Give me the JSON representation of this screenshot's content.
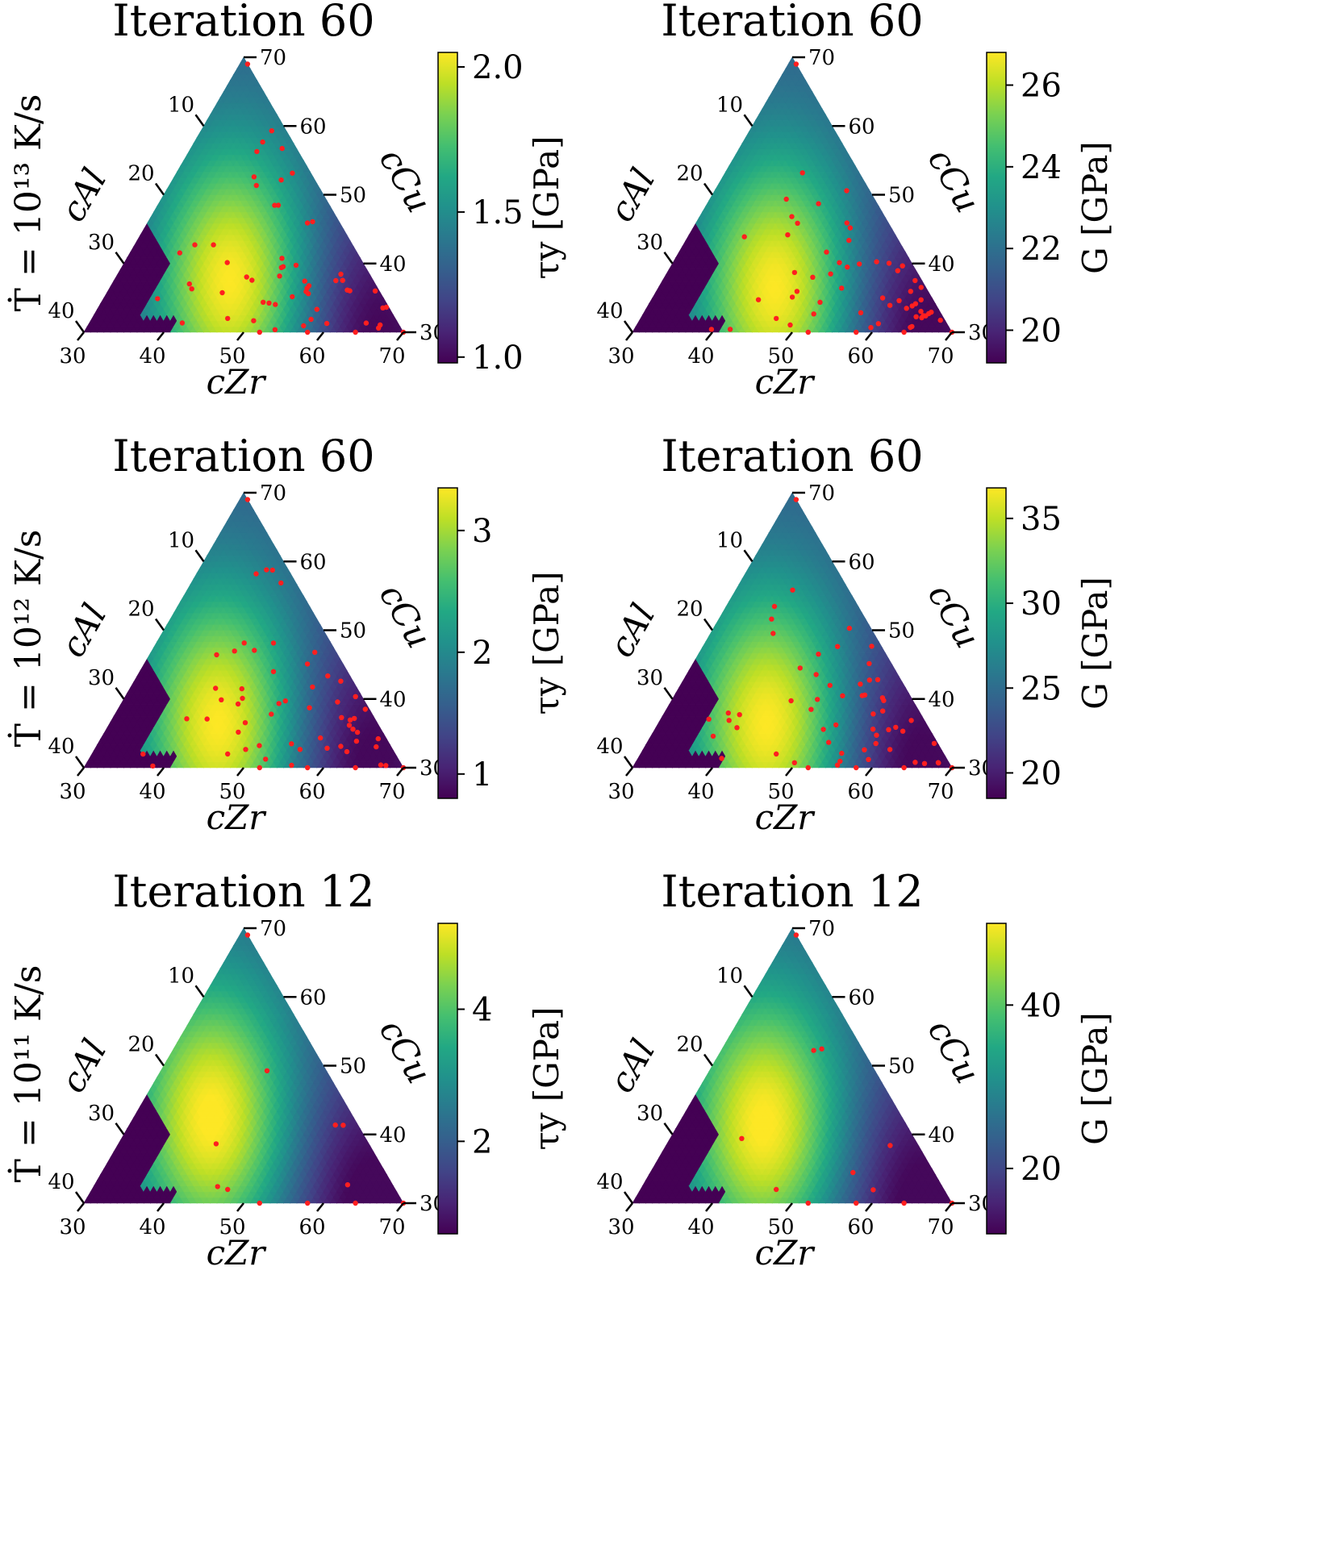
{
  "figure": {
    "row_labels": [
      "Ṫ = 10¹³ K/s",
      "Ṫ = 10¹² K/s",
      "Ṫ = 10¹¹ K/s"
    ],
    "colormap": [
      "#440154",
      "#482475",
      "#414487",
      "#355f8d",
      "#2a788e",
      "#21918c",
      "#22a884",
      "#44bf70",
      "#7ad151",
      "#bddf26",
      "#fde725"
    ],
    "marker_color": "#ff1f1f",
    "masked_color": "#440154"
  },
  "chart_data": [
    {
      "type": "heatmap",
      "subtype": "ternary",
      "title": "Iteration 60",
      "axes": {
        "c_zr_label": "cZr",
        "c_al_label": "cAl",
        "c_cu_label": "cCu",
        "c_zr_ticks": [
          "30",
          "40",
          "50",
          "60",
          "70"
        ],
        "c_al_ticks": [
          "10",
          "20",
          "30",
          "40"
        ],
        "c_cu_ticks": [
          "70",
          "60",
          "50",
          "40",
          "30"
        ]
      },
      "colorbar": {
        "label": "τy [GPa]",
        "range": [
          0.98,
          2.05
        ],
        "ticks": [
          {
            "value": 1.0,
            "label": "1.0"
          },
          {
            "value": 1.5,
            "label": "1.5"
          },
          {
            "value": 2.0,
            "label": "2.0"
          }
        ]
      },
      "field": {
        "peak": {
          "zr": 45,
          "al": 18,
          "cu": 37
        },
        "low": {
          "zr": 64,
          "al": 5,
          "cu": 31
        }
      },
      "sample_count": 60
    },
    {
      "type": "heatmap",
      "subtype": "ternary",
      "title": "Iteration 60",
      "axes": {
        "c_zr_label": "cZr",
        "c_al_label": "cAl",
        "c_cu_label": "cCu",
        "c_zr_ticks": [
          "30",
          "40",
          "50",
          "60",
          "70"
        ],
        "c_al_ticks": [
          "10",
          "20",
          "30",
          "40"
        ],
        "c_cu_ticks": [
          "70",
          "60",
          "50",
          "40",
          "30"
        ]
      },
      "colorbar": {
        "label": "G [GPa]",
        "range": [
          19.2,
          26.8
        ],
        "ticks": [
          {
            "value": 20,
            "label": "20"
          },
          {
            "value": 22,
            "label": "22"
          },
          {
            "value": 24,
            "label": "24"
          },
          {
            "value": 26,
            "label": "26"
          }
        ]
      },
      "field": {
        "peak": {
          "zr": 45,
          "al": 19,
          "cu": 36
        },
        "low": {
          "zr": 64,
          "al": 5,
          "cu": 31
        }
      },
      "sample_count": 60
    },
    {
      "type": "heatmap",
      "subtype": "ternary",
      "title": "Iteration 60",
      "axes": {
        "c_zr_label": "cZr",
        "c_al_label": "cAl",
        "c_cu_label": "cCu",
        "c_zr_ticks": [
          "30",
          "40",
          "50",
          "60",
          "70"
        ],
        "c_al_ticks": [
          "10",
          "20",
          "30",
          "40"
        ],
        "c_cu_ticks": [
          "70",
          "60",
          "50",
          "40",
          "30"
        ]
      },
      "colorbar": {
        "label": "τy [GPa]",
        "range": [
          0.8,
          3.35
        ],
        "ticks": [
          {
            "value": 1,
            "label": "1"
          },
          {
            "value": 2,
            "label": "2"
          },
          {
            "value": 3,
            "label": "3"
          }
        ]
      },
      "field": {
        "peak": {
          "zr": 44,
          "al": 20,
          "cu": 36
        },
        "low": {
          "zr": 63,
          "al": 5,
          "cu": 32
        }
      },
      "sample_count": 60
    },
    {
      "type": "heatmap",
      "subtype": "ternary",
      "title": "Iteration 60",
      "axes": {
        "c_zr_label": "cZr",
        "c_al_label": "cAl",
        "c_cu_label": "cCu",
        "c_zr_ticks": [
          "30",
          "40",
          "50",
          "60",
          "70"
        ],
        "c_al_ticks": [
          "10",
          "20",
          "30",
          "40"
        ],
        "c_cu_ticks": [
          "70",
          "60",
          "50",
          "40",
          "30"
        ]
      },
      "colorbar": {
        "label": "G [GPa]",
        "range": [
          18.5,
          36.8
        ],
        "ticks": [
          {
            "value": 20,
            "label": "20"
          },
          {
            "value": 25,
            "label": "25"
          },
          {
            "value": 30,
            "label": "30"
          },
          {
            "value": 35,
            "label": "35"
          }
        ]
      },
      "field": {
        "peak": {
          "zr": 44,
          "al": 20,
          "cu": 36
        },
        "low": {
          "zr": 63,
          "al": 5,
          "cu": 32
        }
      },
      "sample_count": 60
    },
    {
      "type": "heatmap",
      "subtype": "ternary",
      "title": "Iteration 12",
      "axes": {
        "c_zr_label": "cZr",
        "c_al_label": "cAl",
        "c_cu_label": "cCu",
        "c_zr_ticks": [
          "30",
          "40",
          "50",
          "60",
          "70"
        ],
        "c_al_ticks": [
          "10",
          "20",
          "30",
          "40"
        ],
        "c_cu_ticks": [
          "70",
          "60",
          "50",
          "40",
          "30"
        ]
      },
      "colorbar": {
        "label": "τy [GPa]",
        "range": [
          0.6,
          5.3
        ],
        "ticks": [
          {
            "value": 2,
            "label": "2"
          },
          {
            "value": 4,
            "label": "4"
          }
        ]
      },
      "field": {
        "peak": {
          "zr": 40,
          "al": 18,
          "cu": 42
        },
        "low": {
          "zr": 64,
          "al": 5,
          "cu": 31
        }
      },
      "sample_count": 12
    },
    {
      "type": "heatmap",
      "subtype": "ternary",
      "title": "Iteration 12",
      "axes": {
        "c_zr_label": "cZr",
        "c_al_label": "cAl",
        "c_cu_label": "cCu",
        "c_zr_ticks": [
          "30",
          "40",
          "50",
          "60",
          "70"
        ],
        "c_al_ticks": [
          "10",
          "20",
          "30",
          "40"
        ],
        "c_cu_ticks": [
          "70",
          "60",
          "50",
          "40",
          "30"
        ]
      },
      "colorbar": {
        "label": "G [GPa]",
        "range": [
          12,
          50
        ],
        "ticks": [
          {
            "value": 20,
            "label": "20"
          },
          {
            "value": 40,
            "label": "40"
          }
        ]
      },
      "field": {
        "peak": {
          "zr": 41,
          "al": 18,
          "cu": 41
        },
        "low": {
          "zr": 64,
          "al": 5,
          "cu": 31
        }
      },
      "sample_count": 12
    }
  ]
}
